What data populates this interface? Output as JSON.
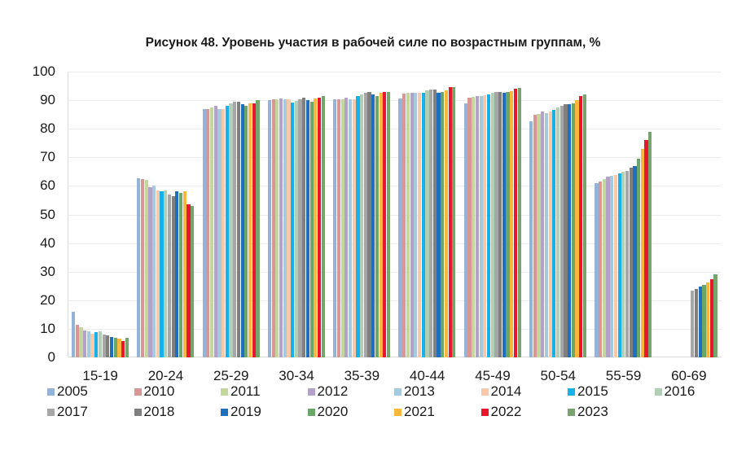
{
  "chart_data": {
    "type": "bar",
    "title": "Рисунок 48. Уровень участия в рабочей силе по возрастным группам, %",
    "xlabel": "",
    "ylabel": "",
    "ylim": [
      0,
      100
    ],
    "yticks": [
      0,
      10,
      20,
      30,
      40,
      50,
      60,
      70,
      80,
      90,
      100
    ],
    "grid": true,
    "legend_position": "bottom",
    "categories": [
      "15-19",
      "20-24",
      "25-29",
      "30-34",
      "35-39",
      "40-44",
      "45-49",
      "50-54",
      "55-59",
      "60-69"
    ],
    "series": [
      {
        "name": "2005",
        "color": "#95b3d7",
        "values": [
          16.0,
          62.7,
          87.0,
          90.0,
          90.2,
          90.5,
          89.0,
          82.5,
          61.0,
          null
        ]
      },
      {
        "name": "2010",
        "color": "#d99694",
        "values": [
          11.5,
          62.5,
          87.0,
          90.3,
          90.3,
          92.3,
          91.0,
          85.0,
          61.5,
          null
        ]
      },
      {
        "name": "2011",
        "color": "#c3d69b",
        "values": [
          10.5,
          62.0,
          87.5,
          90.3,
          90.3,
          92.5,
          91.3,
          85.3,
          62.5,
          null
        ]
      },
      {
        "name": "2012",
        "color": "#b3a2c7",
        "values": [
          9.3,
          59.5,
          88.0,
          90.7,
          90.8,
          92.5,
          91.5,
          86.0,
          63.3,
          null
        ]
      },
      {
        "name": "2013",
        "color": "#a5c9df",
        "values": [
          9.0,
          60.0,
          87.0,
          90.3,
          90.3,
          92.5,
          91.5,
          85.5,
          63.5,
          null
        ]
      },
      {
        "name": "2014",
        "color": "#f9c8a8",
        "values": [
          8.3,
          58.5,
          87.0,
          90.3,
          90.3,
          92.7,
          91.8,
          86.0,
          63.7,
          null
        ]
      },
      {
        "name": "2015",
        "color": "#18b0e8",
        "values": [
          8.8,
          58.0,
          88.0,
          89.3,
          91.5,
          92.5,
          92.0,
          86.5,
          64.5,
          null
        ]
      },
      {
        "name": "2016",
        "color": "#b0cfb4",
        "values": [
          9.0,
          58.5,
          89.0,
          89.8,
          92.0,
          93.5,
          92.5,
          87.5,
          65.0,
          null
        ]
      },
      {
        "name": "2017",
        "color": "#a6a6a6",
        "values": [
          8.0,
          57.0,
          89.5,
          90.3,
          92.5,
          93.7,
          93.0,
          88.0,
          65.3,
          23.5
        ]
      },
      {
        "name": "2018",
        "color": "#7f7f7f",
        "values": [
          7.8,
          56.5,
          89.5,
          91.0,
          92.8,
          93.7,
          93.0,
          88.5,
          66.5,
          24.0
        ]
      },
      {
        "name": "2019",
        "color": "#1f6fbf",
        "values": [
          7.0,
          58.0,
          88.5,
          90.0,
          92.0,
          92.7,
          92.5,
          88.5,
          67.0,
          24.7
        ]
      },
      {
        "name": "2020",
        "color": "#6aa56a",
        "values": [
          6.8,
          57.5,
          88.0,
          89.5,
          91.5,
          92.8,
          92.8,
          89.0,
          69.5,
          25.3
        ]
      },
      {
        "name": "2021",
        "color": "#fbb73c",
        "values": [
          6.5,
          58.0,
          89.0,
          90.5,
          92.5,
          93.5,
          93.3,
          90.0,
          73.0,
          26.3
        ]
      },
      {
        "name": "2022",
        "color": "#e8172b",
        "values": [
          5.8,
          53.5,
          89.0,
          91.0,
          93.0,
          94.5,
          94.0,
          91.5,
          76.0,
          27.3
        ]
      },
      {
        "name": "2023",
        "color": "#75a46c",
        "values": [
          6.8,
          53.0,
          90.0,
          91.5,
          93.0,
          94.5,
          94.3,
          92.0,
          79.0,
          29.0
        ]
      }
    ]
  },
  "legend": {
    "row1": [
      "2005",
      "2010",
      "2011",
      "2012",
      "2013",
      "2014",
      "2015",
      "2016"
    ],
    "row2": [
      "2017",
      "2018",
      "2019",
      "2020",
      "2021",
      "2022",
      "2023"
    ]
  }
}
